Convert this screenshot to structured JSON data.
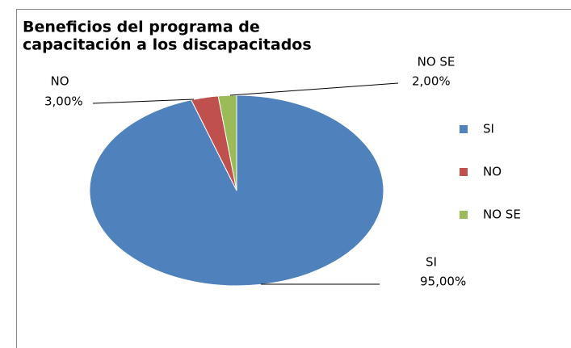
{
  "chart_data": {
    "type": "pie",
    "title": [
      "Beneficios del programa de",
      "capacitación a los discapacitados"
    ],
    "categories": [
      "SI",
      "NO",
      "NO SE"
    ],
    "values": [
      95,
      3,
      2
    ],
    "value_labels": [
      "95,00%",
      "3,00%",
      "2,00%"
    ],
    "colors": [
      "#4f81bd",
      "#c0504d",
      "#9bbb59"
    ],
    "legend": "right"
  }
}
